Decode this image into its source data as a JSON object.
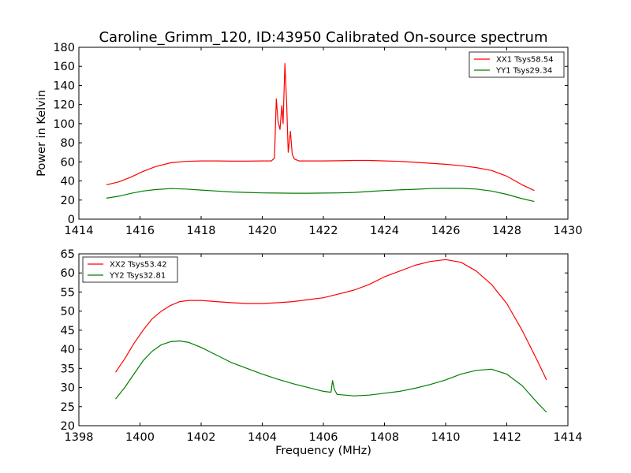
{
  "title": "Caroline_Grimm_120, ID:43950 Calibrated On-source spectrum",
  "chart_data": [
    {
      "type": "line",
      "ylabel": "Power in Kelvin",
      "xlabel": "",
      "xlim": [
        1414,
        1430
      ],
      "ylim": [
        0,
        180
      ],
      "xticks": [
        1414,
        1416,
        1418,
        1420,
        1422,
        1424,
        1426,
        1428,
        1430
      ],
      "yticks": [
        0,
        20,
        40,
        60,
        80,
        100,
        120,
        140,
        160,
        180
      ],
      "legend_position": "top-right",
      "series": [
        {
          "name": "XX1 Tsys58.54",
          "color": "#ff0000",
          "points": [
            [
              1414.9,
              36
            ],
            [
              1415.3,
              39
            ],
            [
              1415.7,
              44
            ],
            [
              1416.1,
              50
            ],
            [
              1416.5,
              55
            ],
            [
              1417.0,
              59
            ],
            [
              1417.5,
              60.5
            ],
            [
              1418.0,
              61
            ],
            [
              1418.5,
              61
            ],
            [
              1419.0,
              60.8
            ],
            [
              1419.5,
              60.8
            ],
            [
              1420.0,
              61
            ],
            [
              1420.3,
              61
            ],
            [
              1420.4,
              64
            ],
            [
              1420.46,
              126
            ],
            [
              1420.52,
              102
            ],
            [
              1420.58,
              94
            ],
            [
              1420.64,
              119
            ],
            [
              1420.68,
              100
            ],
            [
              1420.74,
              163
            ],
            [
              1420.8,
              120
            ],
            [
              1420.85,
              70
            ],
            [
              1420.92,
              92
            ],
            [
              1420.98,
              68
            ],
            [
              1421.05,
              63
            ],
            [
              1421.2,
              61
            ],
            [
              1421.5,
              61
            ],
            [
              1422.0,
              61
            ],
            [
              1422.5,
              61.2
            ],
            [
              1423.0,
              61.5
            ],
            [
              1423.5,
              61.5
            ],
            [
              1424.0,
              61
            ],
            [
              1424.5,
              60.5
            ],
            [
              1425.0,
              59.5
            ],
            [
              1425.5,
              58.5
            ],
            [
              1426.0,
              57.5
            ],
            [
              1426.5,
              56
            ],
            [
              1427.0,
              54
            ],
            [
              1427.5,
              51
            ],
            [
              1428.0,
              45
            ],
            [
              1428.5,
              36
            ],
            [
              1428.9,
              30
            ]
          ]
        },
        {
          "name": "YY1 Tsys29.34",
          "color": "#008000",
          "points": [
            [
              1414.9,
              22
            ],
            [
              1415.3,
              24
            ],
            [
              1415.7,
              27
            ],
            [
              1416.1,
              29.5
            ],
            [
              1416.5,
              31
            ],
            [
              1417.0,
              32
            ],
            [
              1417.5,
              31.5
            ],
            [
              1418.0,
              30.5
            ],
            [
              1418.5,
              29.5
            ],
            [
              1419.0,
              28.5
            ],
            [
              1419.5,
              28
            ],
            [
              1420.0,
              27.5
            ],
            [
              1420.5,
              27.3
            ],
            [
              1421.0,
              27.2
            ],
            [
              1421.5,
              27.2
            ],
            [
              1422.0,
              27.3
            ],
            [
              1422.5,
              27.5
            ],
            [
              1423.0,
              28
            ],
            [
              1423.5,
              29
            ],
            [
              1424.0,
              30
            ],
            [
              1424.5,
              30.7
            ],
            [
              1425.0,
              31.3
            ],
            [
              1425.5,
              32
            ],
            [
              1426.0,
              32.3
            ],
            [
              1426.5,
              32.2
            ],
            [
              1427.0,
              31.5
            ],
            [
              1427.5,
              29.5
            ],
            [
              1428.0,
              26
            ],
            [
              1428.5,
              21.5
            ],
            [
              1428.9,
              18.5
            ]
          ]
        }
      ]
    },
    {
      "type": "line",
      "ylabel": "",
      "xlabel": "Frequency (MHz)",
      "xlim": [
        1398,
        1414
      ],
      "ylim": [
        20,
        65
      ],
      "xticks": [
        1398,
        1400,
        1402,
        1404,
        1406,
        1408,
        1410,
        1412,
        1414
      ],
      "yticks": [
        20,
        25,
        30,
        35,
        40,
        45,
        50,
        55,
        60,
        65
      ],
      "legend_position": "top-left",
      "series": [
        {
          "name": "XX2 Tsys53.42",
          "color": "#ff0000",
          "points": [
            [
              1399.2,
              34
            ],
            [
              1399.5,
              37.5
            ],
            [
              1399.8,
              41.5
            ],
            [
              1400.1,
              45
            ],
            [
              1400.4,
              48
            ],
            [
              1400.7,
              50
            ],
            [
              1401.0,
              51.5
            ],
            [
              1401.3,
              52.5
            ],
            [
              1401.6,
              52.8
            ],
            [
              1402.0,
              52.8
            ],
            [
              1402.5,
              52.5
            ],
            [
              1403.0,
              52.2
            ],
            [
              1403.5,
              52
            ],
            [
              1404.0,
              52
            ],
            [
              1404.5,
              52.2
            ],
            [
              1405.0,
              52.5
            ],
            [
              1405.5,
              53
            ],
            [
              1406.0,
              53.5
            ],
            [
              1406.5,
              54.5
            ],
            [
              1407.0,
              55.5
            ],
            [
              1407.5,
              57
            ],
            [
              1408.0,
              59
            ],
            [
              1408.5,
              60.5
            ],
            [
              1409.0,
              62
            ],
            [
              1409.5,
              63
            ],
            [
              1410.0,
              63.5
            ],
            [
              1410.5,
              62.8
            ],
            [
              1411.0,
              60.5
            ],
            [
              1411.5,
              57
            ],
            [
              1412.0,
              52
            ],
            [
              1412.5,
              45
            ],
            [
              1413.0,
              37
            ],
            [
              1413.3,
              32
            ]
          ]
        },
        {
          "name": "YY2 Tsys32.81",
          "color": "#008000",
          "points": [
            [
              1399.2,
              27
            ],
            [
              1399.5,
              30
            ],
            [
              1399.8,
              33.5
            ],
            [
              1400.1,
              37
            ],
            [
              1400.4,
              39.5
            ],
            [
              1400.7,
              41.2
            ],
            [
              1401.0,
              42
            ],
            [
              1401.3,
              42.2
            ],
            [
              1401.6,
              41.8
            ],
            [
              1402.0,
              40.5
            ],
            [
              1402.5,
              38.5
            ],
            [
              1403.0,
              36.5
            ],
            [
              1403.5,
              35
            ],
            [
              1404.0,
              33.5
            ],
            [
              1404.5,
              32.2
            ],
            [
              1405.0,
              31
            ],
            [
              1405.5,
              30
            ],
            [
              1406.0,
              29
            ],
            [
              1406.2,
              28.8
            ],
            [
              1406.25,
              28.8
            ],
            [
              1406.3,
              31.8
            ],
            [
              1406.36,
              29.5
            ],
            [
              1406.45,
              28.2
            ],
            [
              1407.0,
              27.8
            ],
            [
              1407.5,
              28
            ],
            [
              1408.0,
              28.5
            ],
            [
              1408.5,
              29
            ],
            [
              1409.0,
              29.8
            ],
            [
              1409.5,
              30.8
            ],
            [
              1410.0,
              32
            ],
            [
              1410.5,
              33.5
            ],
            [
              1411.0,
              34.5
            ],
            [
              1411.5,
              34.8
            ],
            [
              1412.0,
              33.5
            ],
            [
              1412.5,
              30.5
            ],
            [
              1413.0,
              26
            ],
            [
              1413.3,
              23.5
            ]
          ]
        }
      ]
    }
  ]
}
